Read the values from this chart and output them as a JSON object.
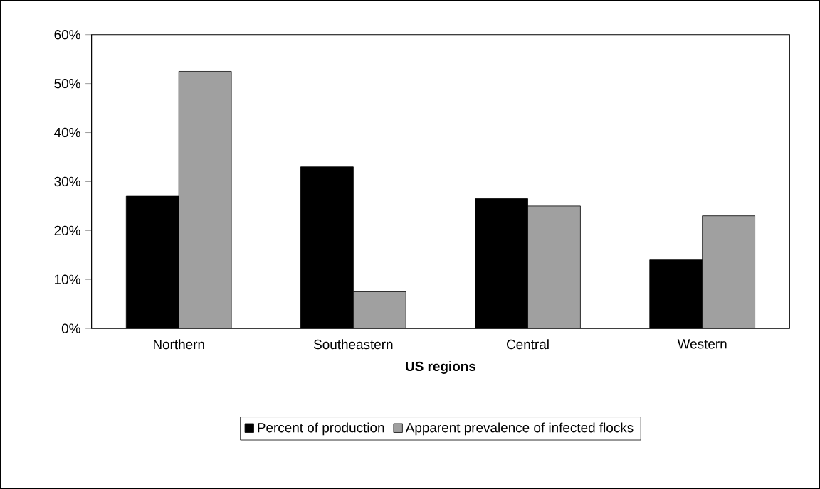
{
  "chart_data": {
    "type": "bar",
    "xlabel": "US regions",
    "categories": [
      "Northern",
      "Southeastern",
      "Central",
      "Western"
    ],
    "series": [
      {
        "name": "Percent of production",
        "color": "#000000",
        "values": [
          27,
          33,
          26.5,
          14
        ]
      },
      {
        "name": "Apparent prevalence of infected flocks",
        "color": "#a0a0a0",
        "values": [
          52.5,
          7.5,
          25,
          23
        ]
      }
    ],
    "ylim": [
      0,
      60
    ],
    "yticks": [
      {
        "value": 0,
        "label": "0%"
      },
      {
        "value": 10,
        "label": "10%"
      },
      {
        "value": 20,
        "label": "20%"
      },
      {
        "value": 30,
        "label": "30%"
      },
      {
        "value": 40,
        "label": "40%"
      },
      {
        "value": 50,
        "label": "50%"
      },
      {
        "value": 60,
        "label": "60%"
      }
    ],
    "grid": false,
    "legend": "bottom"
  }
}
